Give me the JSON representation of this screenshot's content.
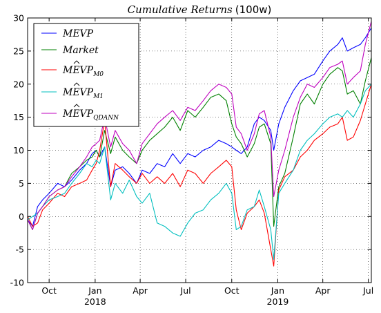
{
  "chart_data": {
    "type": "line",
    "title": "Cumulative Returns",
    "title_suffix": "(100w)",
    "xlabel": "",
    "ylabel": "",
    "xlim": [
      "2017-08-19",
      "2019-07-07"
    ],
    "ylim": [
      -10,
      30
    ],
    "grid": true,
    "legend_position": "top-left",
    "y_ticks": [
      -10,
      -5,
      0,
      5,
      10,
      15,
      20,
      25,
      30
    ],
    "x_ticks": [
      {
        "date": "2017-10-01",
        "label": "Oct",
        "sublabel": ""
      },
      {
        "date": "2018-01-01",
        "label": "Jan",
        "sublabel": "2018"
      },
      {
        "date": "2018-04-01",
        "label": "Apr",
        "sublabel": ""
      },
      {
        "date": "2018-07-01",
        "label": "Jul",
        "sublabel": ""
      },
      {
        "date": "2018-10-01",
        "label": "Oct",
        "sublabel": ""
      },
      {
        "date": "2019-01-01",
        "label": "Jan",
        "sublabel": "2019"
      },
      {
        "date": "2019-04-01",
        "label": "Apr",
        "sublabel": ""
      },
      {
        "date": "2019-07-01",
        "label": "Jul",
        "sublabel": ""
      }
    ],
    "series": [
      {
        "name": "MEVP",
        "legend_base": "MEVP",
        "legend_hat": false,
        "legend_sub": "",
        "color": "#0000ff",
        "x": [
          "2017-08-19",
          "2017-08-29",
          "2017-09-08",
          "2017-09-18",
          "2017-10-01",
          "2017-10-18",
          "2017-11-01",
          "2017-11-15",
          "2017-12-01",
          "2017-12-15",
          "2017-12-26",
          "2018-01-03",
          "2018-01-10",
          "2018-01-20",
          "2018-02-01",
          "2018-02-10",
          "2018-02-25",
          "2018-03-10",
          "2018-03-25",
          "2018-04-05",
          "2018-04-20",
          "2018-05-05",
          "2018-05-20",
          "2018-06-05",
          "2018-06-20",
          "2018-07-05",
          "2018-07-20",
          "2018-08-05",
          "2018-08-20",
          "2018-09-05",
          "2018-09-20",
          "2018-10-01",
          "2018-10-10",
          "2018-10-20",
          "2018-11-01",
          "2018-11-15",
          "2018-11-25",
          "2018-12-05",
          "2018-12-18",
          "2018-12-24",
          "2019-01-03",
          "2019-01-15",
          "2019-02-01",
          "2019-02-15",
          "2019-03-01",
          "2019-03-15",
          "2019-04-01",
          "2019-04-15",
          "2019-05-01",
          "2019-05-10",
          "2019-05-20",
          "2019-06-01",
          "2019-06-15",
          "2019-06-25",
          "2019-07-07"
        ],
        "values": [
          -0.5,
          -1.5,
          1.5,
          2.5,
          3.5,
          5.0,
          4.5,
          5.5,
          7.0,
          8.0,
          9.5,
          10.0,
          9.0,
          10.5,
          4.5,
          7.0,
          7.5,
          6.5,
          5.0,
          7.0,
          6.5,
          8.0,
          7.5,
          9.5,
          8.0,
          9.5,
          9.0,
          10.0,
          10.5,
          11.5,
          11.0,
          10.5,
          10.0,
          9.5,
          10.5,
          14.0,
          15.0,
          14.5,
          13.0,
          10.0,
          14.0,
          16.5,
          19.0,
          20.5,
          21.0,
          21.5,
          23.5,
          25.0,
          26.0,
          27.0,
          25.0,
          25.5,
          26.0,
          27.0,
          28.5
        ]
      },
      {
        "name": "Market",
        "legend_base": "Market",
        "legend_hat": false,
        "legend_sub": "",
        "color": "#008000",
        "x": [
          "2017-08-19",
          "2017-08-29",
          "2017-09-08",
          "2017-09-18",
          "2017-10-01",
          "2017-10-18",
          "2017-11-01",
          "2017-11-15",
          "2017-12-01",
          "2017-12-15",
          "2017-12-26",
          "2018-01-03",
          "2018-01-10",
          "2018-01-20",
          "2018-02-01",
          "2018-02-10",
          "2018-02-25",
          "2018-03-10",
          "2018-03-25",
          "2018-04-05",
          "2018-04-20",
          "2018-05-05",
          "2018-05-20",
          "2018-06-05",
          "2018-06-20",
          "2018-07-05",
          "2018-07-20",
          "2018-08-05",
          "2018-08-20",
          "2018-09-05",
          "2018-09-20",
          "2018-10-01",
          "2018-10-10",
          "2018-10-20",
          "2018-11-01",
          "2018-11-15",
          "2018-11-25",
          "2018-12-05",
          "2018-12-18",
          "2018-12-24",
          "2019-01-03",
          "2019-01-15",
          "2019-02-01",
          "2019-02-15",
          "2019-03-01",
          "2019-03-15",
          "2019-04-01",
          "2019-04-15",
          "2019-05-01",
          "2019-05-10",
          "2019-05-20",
          "2019-06-01",
          "2019-06-15",
          "2019-06-25",
          "2019-07-07"
        ],
        "values": [
          -0.5,
          -2.0,
          0.5,
          1.5,
          3.0,
          4.0,
          4.5,
          6.5,
          7.5,
          8.5,
          9.0,
          10.0,
          9.0,
          13.0,
          9.5,
          12.0,
          10.0,
          9.0,
          8.0,
          10.0,
          11.5,
          12.5,
          13.5,
          15.0,
          13.0,
          16.0,
          15.0,
          16.5,
          18.0,
          18.5,
          17.5,
          14.0,
          12.0,
          11.0,
          9.0,
          11.0,
          13.5,
          14.0,
          11.0,
          -1.5,
          4.5,
          6.5,
          12.0,
          17.0,
          18.5,
          17.0,
          20.0,
          21.5,
          22.5,
          22.0,
          18.5,
          19.0,
          17.0,
          20.5,
          24.0
        ]
      },
      {
        "name": "MÊVP M0",
        "legend_base": "MEVP",
        "legend_hat": true,
        "legend_sub": "M0",
        "color": "#ff0000",
        "x": [
          "2017-08-19",
          "2017-08-29",
          "2017-09-08",
          "2017-09-18",
          "2017-10-01",
          "2017-10-18",
          "2017-11-01",
          "2017-11-15",
          "2017-12-01",
          "2017-12-15",
          "2017-12-26",
          "2018-01-03",
          "2018-01-10",
          "2018-01-20",
          "2018-02-01",
          "2018-02-10",
          "2018-02-25",
          "2018-03-10",
          "2018-03-25",
          "2018-04-05",
          "2018-04-20",
          "2018-05-05",
          "2018-05-20",
          "2018-06-05",
          "2018-06-20",
          "2018-07-05",
          "2018-07-20",
          "2018-08-05",
          "2018-08-20",
          "2018-09-05",
          "2018-09-20",
          "2018-10-01",
          "2018-10-10",
          "2018-10-20",
          "2018-11-01",
          "2018-11-15",
          "2018-11-25",
          "2018-12-05",
          "2018-12-18",
          "2018-12-24",
          "2019-01-03",
          "2019-01-15",
          "2019-02-01",
          "2019-02-15",
          "2019-03-01",
          "2019-03-15",
          "2019-04-01",
          "2019-04-15",
          "2019-05-01",
          "2019-05-10",
          "2019-05-20",
          "2019-06-01",
          "2019-06-15",
          "2019-06-25",
          "2019-07-07"
        ],
        "values": [
          0.0,
          -1.5,
          -1.0,
          1.0,
          2.0,
          3.5,
          3.0,
          4.5,
          5.0,
          5.5,
          7.0,
          8.0,
          10.0,
          14.5,
          4.5,
          8.0,
          7.0,
          6.0,
          5.0,
          6.5,
          5.0,
          6.0,
          5.0,
          6.5,
          4.5,
          7.0,
          6.5,
          5.0,
          6.5,
          7.5,
          8.5,
          7.5,
          1.0,
          -2.0,
          0.5,
          1.5,
          2.5,
          0.5,
          -5.0,
          -7.5,
          4.0,
          6.0,
          7.0,
          9.0,
          10.0,
          11.5,
          12.5,
          13.5,
          14.0,
          15.0,
          11.5,
          12.0,
          14.5,
          17.0,
          20.0
        ]
      },
      {
        "name": "MÊVP M1",
        "legend_base": "MEVP",
        "legend_hat": true,
        "legend_sub": "M1",
        "color": "#00bfbf",
        "x": [
          "2017-08-19",
          "2017-08-29",
          "2017-09-08",
          "2017-09-18",
          "2017-10-01",
          "2017-10-18",
          "2017-11-01",
          "2017-11-15",
          "2017-12-01",
          "2017-12-15",
          "2017-12-26",
          "2018-01-03",
          "2018-01-10",
          "2018-01-20",
          "2018-02-01",
          "2018-02-10",
          "2018-02-25",
          "2018-03-10",
          "2018-03-25",
          "2018-04-05",
          "2018-04-20",
          "2018-05-05",
          "2018-05-20",
          "2018-06-05",
          "2018-06-20",
          "2018-07-05",
          "2018-07-20",
          "2018-08-05",
          "2018-08-20",
          "2018-09-05",
          "2018-09-20",
          "2018-10-01",
          "2018-10-10",
          "2018-10-20",
          "2018-11-01",
          "2018-11-15",
          "2018-11-25",
          "2018-12-05",
          "2018-12-18",
          "2018-12-24",
          "2019-01-03",
          "2019-01-15",
          "2019-02-01",
          "2019-02-15",
          "2019-03-01",
          "2019-03-15",
          "2019-04-01",
          "2019-04-15",
          "2019-05-01",
          "2019-05-10",
          "2019-05-20",
          "2019-06-01",
          "2019-06-15",
          "2019-06-25",
          "2019-07-07"
        ],
        "values": [
          -0.5,
          0.0,
          0.5,
          1.5,
          2.5,
          3.0,
          3.5,
          5.0,
          6.5,
          8.0,
          7.5,
          8.5,
          8.0,
          10.5,
          2.5,
          5.0,
          3.5,
          5.5,
          3.0,
          2.0,
          3.5,
          -1.0,
          -1.5,
          -2.5,
          -3.0,
          -1.0,
          0.5,
          1.0,
          2.5,
          3.5,
          5.0,
          3.5,
          -2.0,
          -1.5,
          1.0,
          1.5,
          4.0,
          1.5,
          -2.0,
          -6.5,
          3.5,
          5.0,
          7.0,
          10.0,
          11.5,
          12.5,
          14.0,
          15.0,
          15.5,
          15.0,
          16.0,
          15.0,
          17.0,
          19.0,
          20.0
        ]
      },
      {
        "name": "MÊVP QDANN",
        "legend_base": "MEVP",
        "legend_hat": true,
        "legend_sub": "QDANN",
        "color": "#bf00bf",
        "x": [
          "2017-08-19",
          "2017-08-29",
          "2017-09-08",
          "2017-09-18",
          "2017-10-01",
          "2017-10-18",
          "2017-11-01",
          "2017-11-15",
          "2017-12-01",
          "2017-12-15",
          "2017-12-26",
          "2018-01-03",
          "2018-01-10",
          "2018-01-20",
          "2018-02-01",
          "2018-02-10",
          "2018-02-25",
          "2018-03-10",
          "2018-03-25",
          "2018-04-05",
          "2018-04-20",
          "2018-05-05",
          "2018-05-20",
          "2018-06-05",
          "2018-06-20",
          "2018-07-05",
          "2018-07-20",
          "2018-08-05",
          "2018-08-20",
          "2018-09-05",
          "2018-09-20",
          "2018-10-01",
          "2018-10-10",
          "2018-10-20",
          "2018-11-01",
          "2018-11-15",
          "2018-11-25",
          "2018-12-05",
          "2018-12-18",
          "2018-12-24",
          "2019-01-03",
          "2019-01-15",
          "2019-02-01",
          "2019-02-15",
          "2019-03-01",
          "2019-03-15",
          "2019-04-01",
          "2019-04-15",
          "2019-05-01",
          "2019-05-10",
          "2019-05-20",
          "2019-06-01",
          "2019-06-15",
          "2019-06-25",
          "2019-07-07"
        ],
        "values": [
          -0.5,
          -2.0,
          0.5,
          1.5,
          3.0,
          4.0,
          4.5,
          6.0,
          7.5,
          9.0,
          10.5,
          11.0,
          11.5,
          15.0,
          10.5,
          13.0,
          11.0,
          10.0,
          8.0,
          11.0,
          12.5,
          14.0,
          15.0,
          16.0,
          14.5,
          16.5,
          16.0,
          17.5,
          19.0,
          20.0,
          19.5,
          18.5,
          13.5,
          12.5,
          10.0,
          12.5,
          15.5,
          16.0,
          12.0,
          3.0,
          7.0,
          10.0,
          15.0,
          18.0,
          20.0,
          19.5,
          21.0,
          22.5,
          23.0,
          23.5,
          20.0,
          21.0,
          22.0,
          26.0,
          29.5
        ]
      }
    ]
  }
}
